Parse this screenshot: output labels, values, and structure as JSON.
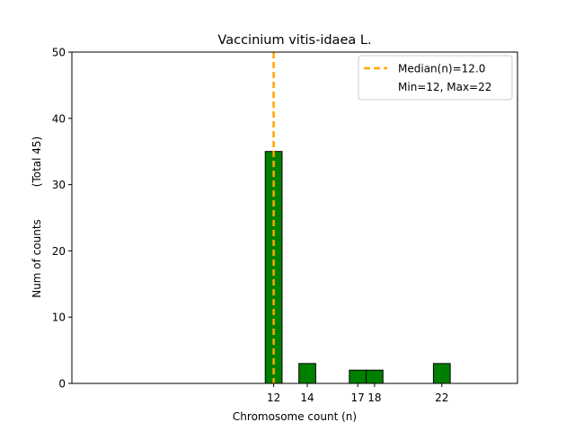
{
  "chart_data": {
    "type": "bar",
    "title": "Vaccinium vitis-idaea L.",
    "xlabel": "Chromosome count (n)",
    "ylabel": "Num of counts",
    "ylabel_total": "(Total 45)",
    "x": [
      12,
      14,
      17,
      18,
      22
    ],
    "values": [
      35,
      3,
      2,
      2,
      3
    ],
    "xlim": [
      0,
      26.5
    ],
    "ylim": [
      0,
      50
    ],
    "yticks": [
      0,
      10,
      20,
      30,
      40,
      50
    ],
    "xticks": [
      12,
      14,
      17,
      18,
      22
    ],
    "bar_color": "#008000",
    "bar_edge_color": "#000000",
    "median": 12.0,
    "median_color": "#FFA500",
    "legend": {
      "placement": "top-right",
      "median_label": "Median(n)=12.0",
      "range_label": "Min=12, Max=22"
    },
    "grid": false
  }
}
